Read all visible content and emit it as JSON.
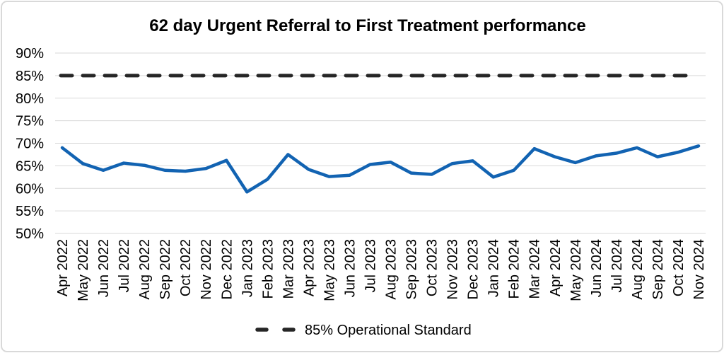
{
  "title": "62 day Urgent Referral to First Treatment performance",
  "legend": {
    "label": "85% Operational Standard"
  },
  "colors": {
    "series_line": "#1263b2",
    "standard_line": "#262626",
    "gridline": "#d9d9d9",
    "text": "#000000",
    "background": "#ffffff",
    "frame_border": "#d9d9d9"
  },
  "chart_data": {
    "type": "line",
    "title": "62 day Urgent Referral to First Treatment performance",
    "categories": [
      "Apr 2022",
      "May 2022",
      "Jun 2022",
      "Jul 2022",
      "Aug 2022",
      "Sep 2022",
      "Oct 2022",
      "Nov 2022",
      "Dec 2022",
      "Jan 2023",
      "Feb 2023",
      "Mar 2023",
      "Apr 2023",
      "May 2023",
      "Jun 2023",
      "Jul 2023",
      "Aug 2023",
      "Sep 2023",
      "Oct 2023",
      "Nov 2023",
      "Dec 2023",
      "Jan 2024",
      "Feb 2024",
      "Mar 2024",
      "Apr 2024",
      "May 2024",
      "Jun 2024",
      "Jul 2024",
      "Aug 2024",
      "Sep 2024",
      "Oct 2024",
      "Nov 2024"
    ],
    "series": [
      {
        "name": "62 day Urgent Referral to First Treatment performance",
        "type": "line",
        "color": "#1263b2",
        "values": [
          69.0,
          65.5,
          64.0,
          65.6,
          65.1,
          64.0,
          63.8,
          64.4,
          66.2,
          59.2,
          62.0,
          67.5,
          64.2,
          62.6,
          62.9,
          65.3,
          65.8,
          63.4,
          63.1,
          65.5,
          66.1,
          62.5,
          64.0,
          68.8,
          67.0,
          65.7,
          67.2,
          67.8,
          69.0,
          67.0,
          68.0,
          69.4
        ]
      },
      {
        "name": "85% Operational Standard",
        "type": "reference-line",
        "style": "dashed",
        "color": "#262626",
        "value": 85
      }
    ],
    "xlabel": "",
    "ylabel": "",
    "ylim": [
      50,
      90
    ],
    "ytick_step": 5,
    "ytick_format": "percent",
    "grid": true,
    "legend_position": "bottom"
  }
}
